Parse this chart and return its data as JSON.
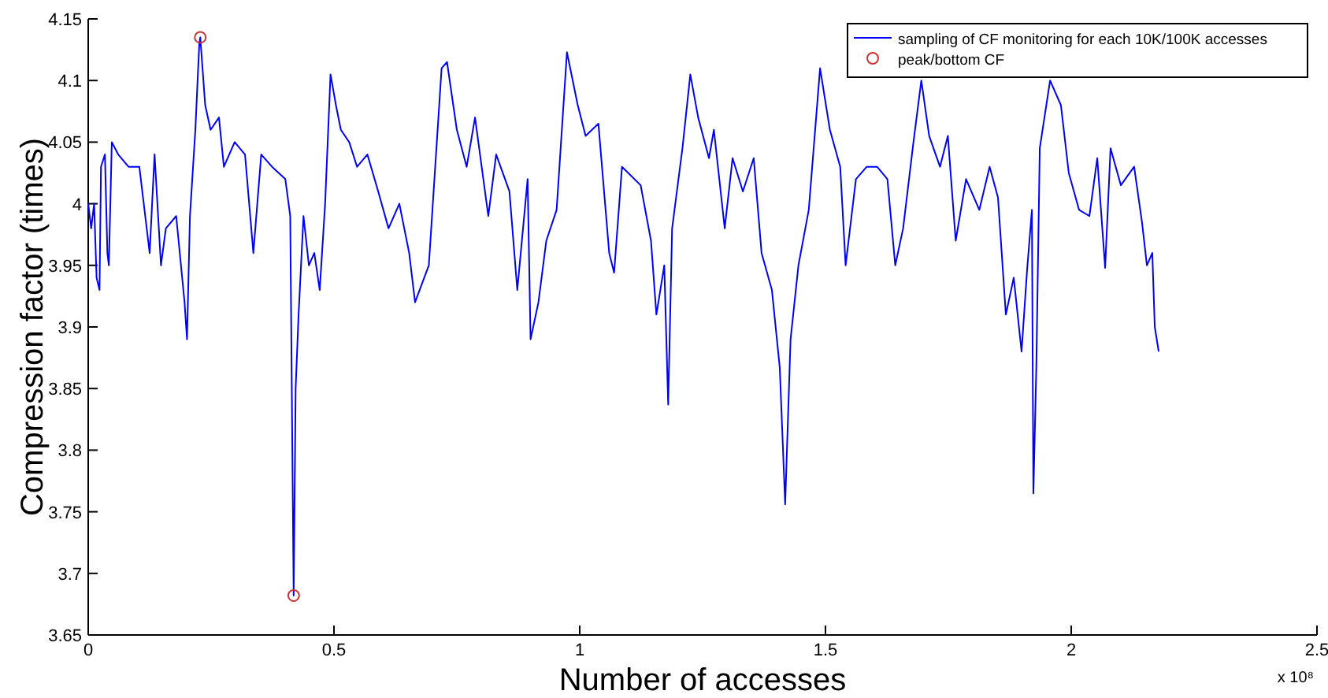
{
  "chart_data": {
    "type": "line",
    "xlabel": "Number of accesses",
    "ylabel": "Compression factor (times)",
    "xlim": [
      0,
      2.5
    ],
    "xticks": [
      0,
      0.5,
      1,
      1.5,
      2,
      2.5
    ],
    "ylim": [
      3.65,
      4.15
    ],
    "yticks": [
      3.65,
      3.7,
      3.75,
      3.8,
      3.85,
      3.9,
      3.95,
      4,
      4.05,
      4.1,
      4.15
    ],
    "grid": false,
    "legend": "top right",
    "annotations": [
      "x 10⁸"
    ],
    "series": [
      {
        "name": "sampling of CF monitoring for each 10K/100K accesses",
        "color": "#0000ff",
        "type": "line",
        "marker": "none",
        "x": [
          0,
          0.006,
          0.012,
          0.017,
          0.023,
          0.026,
          0.034,
          0.039,
          0.042,
          0.048,
          0.061,
          0.082,
          0.104,
          0.125,
          0.135,
          0.148,
          0.158,
          0.179,
          0.196,
          0.201,
          0.207,
          0.218,
          0.226,
          0.228,
          0.238,
          0.249,
          0.266,
          0.276,
          0.298,
          0.319,
          0.336,
          0.352,
          0.374,
          0.401,
          0.411,
          0.418,
          0.422,
          0.428,
          0.438,
          0.449,
          0.46,
          0.471,
          0.482,
          0.493,
          0.504,
          0.514,
          0.531,
          0.547,
          0.568,
          0.59,
          0.611,
          0.633,
          0.653,
          0.665,
          0.693,
          0.719,
          0.73,
          0.75,
          0.77,
          0.787,
          0.814,
          0.83,
          0.857,
          0.873,
          0.894,
          0.9,
          0.916,
          0.932,
          0.953,
          0.974,
          0.996,
          1.012,
          1.038,
          1.06,
          1.07,
          1.086,
          1.124,
          1.145,
          1.156,
          1.172,
          1.18,
          1.188,
          1.209,
          1.225,
          1.241,
          1.263,
          1.273,
          1.295,
          1.311,
          1.332,
          1.354,
          1.37,
          1.391,
          1.407,
          1.418,
          1.429,
          1.445,
          1.466,
          1.489,
          1.509,
          1.53,
          1.541,
          1.562,
          1.584,
          1.605,
          1.626,
          1.642,
          1.658,
          1.679,
          1.695,
          1.711,
          1.733,
          1.749,
          1.765,
          1.786,
          1.813,
          1.834,
          1.851,
          1.867,
          1.883,
          1.899,
          1.91,
          1.92,
          1.923,
          1.929,
          1.936,
          1.957,
          1.979,
          1.995,
          2.016,
          2.037,
          2.053,
          2.069,
          2.08,
          2.101,
          2.128,
          2.144,
          2.154,
          2.165,
          2.17,
          2.178
        ],
        "values": [
          4.0,
          3.98,
          4.0,
          3.94,
          3.93,
          4.03,
          4.04,
          3.96,
          3.95,
          4.05,
          4.04,
          4.03,
          4.03,
          3.96,
          4.04,
          3.95,
          3.98,
          3.99,
          3.92,
          3.89,
          3.99,
          4.06,
          4.13,
          4.135,
          4.08,
          4.06,
          4.07,
          4.03,
          4.05,
          4.04,
          3.96,
          4.04,
          4.03,
          4.02,
          3.99,
          3.682,
          3.85,
          3.91,
          3.99,
          3.95,
          3.96,
          3.93,
          4.0,
          4.105,
          4.08,
          4.06,
          4.05,
          4.03,
          4.04,
          4.01,
          3.98,
          4.0,
          3.96,
          3.92,
          3.95,
          4.11,
          4.115,
          4.06,
          4.03,
          4.07,
          3.99,
          4.04,
          4.01,
          3.93,
          4.02,
          3.89,
          3.92,
          3.97,
          3.995,
          4.123,
          4.08,
          4.055,
          4.065,
          3.96,
          3.944,
          4.03,
          4.015,
          3.97,
          3.91,
          3.95,
          3.837,
          3.98,
          4.045,
          4.105,
          4.07,
          4.037,
          4.06,
          3.98,
          4.037,
          4.01,
          4.037,
          3.96,
          3.93,
          3.867,
          3.756,
          3.89,
          3.95,
          3.995,
          4.11,
          4.06,
          4.03,
          3.95,
          4.02,
          4.03,
          4.03,
          4.02,
          3.95,
          3.98,
          4.05,
          4.1,
          4.055,
          4.03,
          4.055,
          3.97,
          4.02,
          3.995,
          4.03,
          4.005,
          3.91,
          3.94,
          3.88,
          3.945,
          3.995,
          3.765,
          3.867,
          4.045,
          4.1,
          4.08,
          4.025,
          3.995,
          3.99,
          4.037,
          3.948,
          4.045,
          4.015,
          4.03,
          3.985,
          3.95,
          3.96,
          3.9,
          3.88
        ]
      },
      {
        "name": "peak/bottom CF",
        "color": "#cc3333",
        "type": "scatter",
        "marker": "circle",
        "x": [
          0.228,
          0.418
        ],
        "values": [
          4.135,
          3.682
        ]
      }
    ]
  }
}
